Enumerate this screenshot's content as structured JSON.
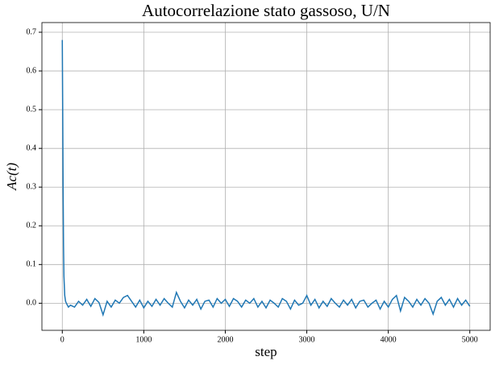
{
  "chart_data": {
    "type": "line",
    "title": "Autocorrelazione stato gassoso, U/N",
    "xlabel": "step",
    "ylabel": "Ac(t)",
    "xlim": [
      -250,
      5250
    ],
    "xticks": [
      0,
      1000,
      2000,
      3000,
      4000,
      5000
    ],
    "ylim": [
      -0.07,
      0.725
    ],
    "yticks": [
      {
        "value": 0,
        "label": "0.0"
      },
      0.1,
      0.2,
      0.3,
      0.4,
      0.5,
      0.6,
      0.7
    ],
    "grid": true,
    "series": [
      {
        "color": "#1f77b4",
        "x": [
          0,
          5,
          10,
          15,
          20,
          30,
          40,
          50,
          75,
          100,
          150,
          200,
          250,
          300,
          350,
          400,
          450,
          500,
          550,
          600,
          650,
          700,
          750,
          800,
          850,
          900,
          950,
          1000,
          1050,
          1100,
          1150,
          1200,
          1250,
          1300,
          1350,
          1400,
          1450,
          1500,
          1550,
          1600,
          1650,
          1700,
          1750,
          1800,
          1850,
          1900,
          1950,
          2000,
          2050,
          2100,
          2150,
          2200,
          2250,
          2300,
          2350,
          2400,
          2450,
          2500,
          2550,
          2600,
          2650,
          2700,
          2750,
          2800,
          2850,
          2900,
          2950,
          3000,
          3050,
          3100,
          3150,
          3200,
          3250,
          3300,
          3350,
          3400,
          3450,
          3500,
          3550,
          3600,
          3650,
          3700,
          3750,
          3800,
          3850,
          3900,
          3950,
          4000,
          4050,
          4100,
          4150,
          4200,
          4250,
          4300,
          4350,
          4400,
          4450,
          4500,
          4550,
          4600,
          4650,
          4700,
          4750,
          4800,
          4850,
          4900,
          4950,
          5000
        ],
        "values": [
          0.68,
          0.5,
          0.3,
          0.15,
          0.07,
          0.02,
          0.005,
          0,
          -0.01,
          -0.005,
          -0.01,
          0.005,
          -0.005,
          0.01,
          -0.008,
          0.012,
          0.002,
          -0.03,
          0.005,
          -0.01,
          0.008,
          0,
          0.015,
          0.02,
          0.005,
          -0.01,
          0.008,
          -0.012,
          0.005,
          -0.008,
          0.01,
          -0.005,
          0.012,
          0,
          -0.01,
          0.028,
          0.005,
          -0.012,
          0.008,
          -0.005,
          0.01,
          -0.015,
          0.005,
          0.008,
          -0.01,
          0.012,
          0,
          0.01,
          -0.008,
          0.012,
          0.005,
          -0.01,
          0.008,
          0,
          0.012,
          -0.01,
          0.005,
          -0.012,
          0.008,
          0,
          -0.01,
          0.012,
          0.005,
          -0.015,
          0.008,
          -0.005,
          0,
          0.02,
          -0.005,
          0.01,
          -0.012,
          0.005,
          -0.008,
          0.012,
          0,
          -0.01,
          0.008,
          -0.005,
          0.01,
          -0.012,
          0.005,
          0.008,
          -0.01,
          0,
          0.008,
          -0.015,
          0.005,
          -0.01,
          0.01,
          0.02,
          -0.02,
          0.015,
          0.005,
          -0.01,
          0.01,
          -0.005,
          0.012,
          0,
          -0.028,
          0.005,
          0.015,
          -0.005,
          0.01,
          -0.01,
          0.012,
          -0.005,
          0.008,
          -0.008
        ]
      }
    ]
  }
}
